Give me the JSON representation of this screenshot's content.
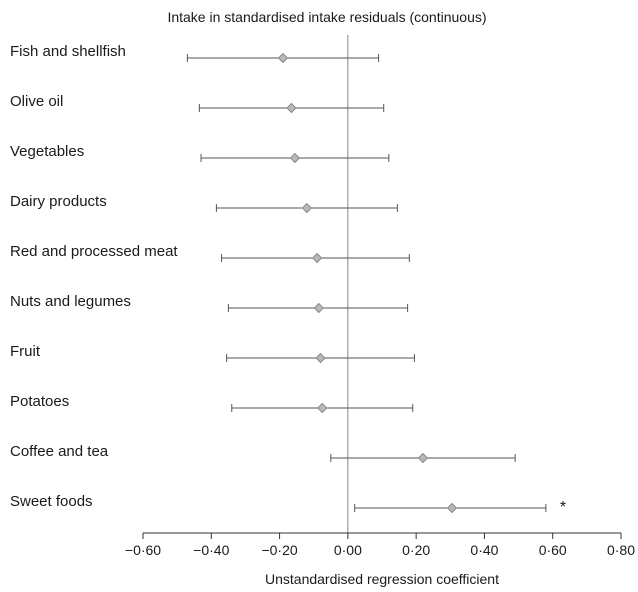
{
  "chart_data": {
    "type": "forest",
    "title": "Intake in standardised intake residuals (continuous)",
    "xlabel": "Unstandardised regression coefficient",
    "xlim": [
      -0.6,
      0.8
    ],
    "xticks": [
      "−0·60",
      "−0·40",
      "−0·20",
      "0·00",
      "0·20",
      "0·40",
      "0·60",
      "0·80"
    ],
    "xtick_values": [
      -0.6,
      -0.4,
      -0.2,
      0.0,
      0.2,
      0.4,
      0.6,
      0.8
    ],
    "reference_line": 0.0,
    "marker": "diamond",
    "colors": {
      "point": "#b8b8b8",
      "line": "#555555",
      "reference": "#888888"
    },
    "rows": [
      {
        "label": "Fish and shellfish",
        "estimate": -0.19,
        "lower": -0.47,
        "upper": 0.09,
        "annotation": ""
      },
      {
        "label": "Olive oil",
        "estimate": -0.165,
        "lower": -0.435,
        "upper": 0.105,
        "annotation": ""
      },
      {
        "label": "Vegetables",
        "estimate": -0.155,
        "lower": -0.43,
        "upper": 0.12,
        "annotation": ""
      },
      {
        "label": "Dairy products",
        "estimate": -0.12,
        "lower": -0.385,
        "upper": 0.145,
        "annotation": ""
      },
      {
        "label": "Red and processed meat",
        "estimate": -0.09,
        "lower": -0.37,
        "upper": 0.18,
        "annotation": ""
      },
      {
        "label": "Nuts and legumes",
        "estimate": -0.085,
        "lower": -0.35,
        "upper": 0.175,
        "annotation": ""
      },
      {
        "label": "Fruit",
        "estimate": -0.08,
        "lower": -0.355,
        "upper": 0.195,
        "annotation": ""
      },
      {
        "label": "Potatoes",
        "estimate": -0.075,
        "lower": -0.34,
        "upper": 0.19,
        "annotation": ""
      },
      {
        "label": "Coffee and tea",
        "estimate": 0.22,
        "lower": -0.05,
        "upper": 0.49,
        "annotation": ""
      },
      {
        "label": "Sweet foods",
        "estimate": 0.305,
        "lower": 0.02,
        "upper": 0.58,
        "annotation": "*"
      }
    ]
  }
}
